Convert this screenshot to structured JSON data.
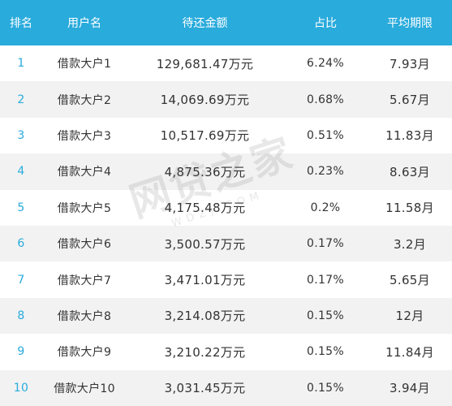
{
  "header": {
    "rank": "排名",
    "user": "用户名",
    "amount": "待还金额",
    "share": "占比",
    "period": "平均期限"
  },
  "rows": [
    {
      "rank": "1",
      "user": "借款大户1",
      "amount": "129,681.47万元",
      "share": "6.24%",
      "period": "7.93月"
    },
    {
      "rank": "2",
      "user": "借款大户2",
      "amount": "14,069.69万元",
      "share": "0.68%",
      "period": "5.67月"
    },
    {
      "rank": "3",
      "user": "借款大户3",
      "amount": "10,517.69万元",
      "share": "0.51%",
      "period": "11.83月"
    },
    {
      "rank": "4",
      "user": "借款大户4",
      "amount": "4,875.36万元",
      "share": "0.23%",
      "period": "8.63月"
    },
    {
      "rank": "5",
      "user": "借款大户5",
      "amount": "4,175.48万元",
      "share": "0.2%",
      "period": "11.58月"
    },
    {
      "rank": "6",
      "user": "借款大户6",
      "amount": "3,500.57万元",
      "share": "0.17%",
      "period": "3.2月"
    },
    {
      "rank": "7",
      "user": "借款大户7",
      "amount": "3,471.01万元",
      "share": "0.17%",
      "period": "5.65月"
    },
    {
      "rank": "8",
      "user": "借款大户8",
      "amount": "3,214.08万元",
      "share": "0.15%",
      "period": "12月"
    },
    {
      "rank": "9",
      "user": "借款大户9",
      "amount": "3,210.22万元",
      "share": "0.15%",
      "period": "11.84月"
    },
    {
      "rank": "10",
      "user": "借款大户10",
      "amount": "3,031.45万元",
      "share": "0.15%",
      "period": "3.94月"
    }
  ],
  "watermark": {
    "text": "网贷之家",
    "sub": "WDZJ.COM"
  },
  "colors": {
    "header_bg": "#29abdc",
    "rank_text": "#29abdc",
    "stripe": "#f2f2f2"
  }
}
